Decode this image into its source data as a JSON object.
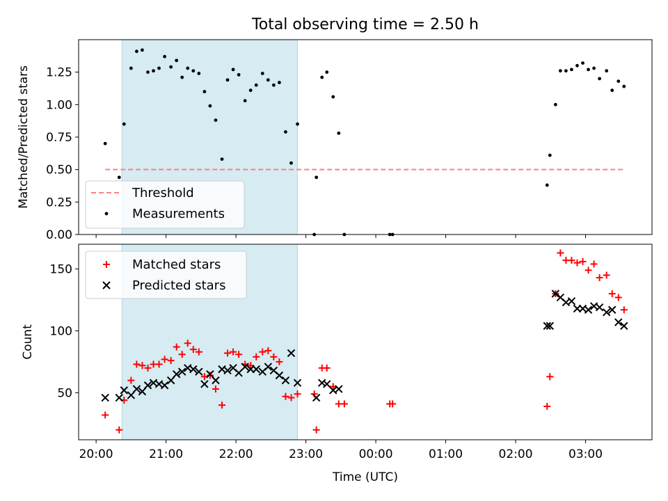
{
  "chart_data": [
    {
      "type": "scatter",
      "panel": "top",
      "title": "Total observing time = 2.50 h",
      "ylabel": "Matched/Predicted stars",
      "xlabel": "",
      "x_unit": "hours since 20:00 UTC (axis labels show clock time)",
      "xlim": [
        -0.25,
        7.95
      ],
      "ylim": [
        0,
        1.5
      ],
      "yticks": [
        0.0,
        0.25,
        0.5,
        0.75,
        1.0,
        1.25
      ],
      "ytick_labels": [
        "0.00",
        "0.25",
        "0.50",
        "0.75",
        "1.00",
        "1.25"
      ],
      "grid": false,
      "legend": {
        "placement": "lower-left",
        "entries": [
          "Threshold",
          "Measurements"
        ]
      },
      "shaded_region": {
        "x_start": 0.37,
        "x_end": 2.88,
        "color": "#add8e6"
      },
      "threshold": {
        "name": "Threshold",
        "y": 0.5,
        "x_start": 0.13,
        "x_end": 7.55,
        "color": "#ff7f7f",
        "dash": true
      },
      "series": [
        {
          "name": "Measurements",
          "color": "#000000",
          "points": [
            [
              0.13,
              0.7
            ],
            [
              0.33,
              0.44
            ],
            [
              0.4,
              0.85
            ],
            [
              0.5,
              1.28
            ],
            [
              0.58,
              1.41
            ],
            [
              0.66,
              1.42
            ],
            [
              0.74,
              1.25
            ],
            [
              0.82,
              1.26
            ],
            [
              0.9,
              1.28
            ],
            [
              0.98,
              1.37
            ],
            [
              1.07,
              1.29
            ],
            [
              1.15,
              1.34
            ],
            [
              1.23,
              1.21
            ],
            [
              1.31,
              1.28
            ],
            [
              1.39,
              1.26
            ],
            [
              1.47,
              1.24
            ],
            [
              1.55,
              1.1
            ],
            [
              1.63,
              0.99
            ],
            [
              1.71,
              0.88
            ],
            [
              1.8,
              0.58
            ],
            [
              1.88,
              1.19
            ],
            [
              1.96,
              1.27
            ],
            [
              2.04,
              1.23
            ],
            [
              2.13,
              1.03
            ],
            [
              2.21,
              1.11
            ],
            [
              2.29,
              1.15
            ],
            [
              2.38,
              1.24
            ],
            [
              2.46,
              1.19
            ],
            [
              2.54,
              1.15
            ],
            [
              2.62,
              1.17
            ],
            [
              2.71,
              0.79
            ],
            [
              2.79,
              0.55
            ],
            [
              2.88,
              0.85
            ],
            [
              3.12,
              0.0
            ],
            [
              3.15,
              0.44
            ],
            [
              3.23,
              1.21
            ],
            [
              3.3,
              1.25
            ],
            [
              3.39,
              1.06
            ],
            [
              3.47,
              0.78
            ],
            [
              3.55,
              0.0
            ],
            [
              4.2,
              0.0
            ],
            [
              4.24,
              0.0
            ],
            [
              6.45,
              0.38
            ],
            [
              6.49,
              0.61
            ],
            [
              6.57,
              1.0
            ],
            [
              6.64,
              1.26
            ],
            [
              6.72,
              1.26
            ],
            [
              6.8,
              1.27
            ],
            [
              6.88,
              1.3
            ],
            [
              6.96,
              1.32
            ],
            [
              7.04,
              1.27
            ],
            [
              7.12,
              1.28
            ],
            [
              7.2,
              1.2
            ],
            [
              7.3,
              1.26
            ],
            [
              7.38,
              1.11
            ],
            [
              7.47,
              1.18
            ],
            [
              7.55,
              1.14
            ]
          ]
        }
      ]
    },
    {
      "type": "scatter",
      "panel": "bottom",
      "title": "",
      "xlabel": "Time (UTC)",
      "ylabel": "Count",
      "x_unit": "hours since 20:00 UTC (axis labels show clock time)",
      "xlim": [
        -0.25,
        7.95
      ],
      "ylim": [
        12,
        170
      ],
      "yticks": [
        50,
        100,
        150
      ],
      "ytick_labels": [
        "50",
        "100",
        "150"
      ],
      "xticks": [
        0,
        1,
        2,
        3,
        4,
        5,
        6,
        7
      ],
      "xtick_labels": [
        "20:00",
        "21:00",
        "22:00",
        "23:00",
        "00:00",
        "01:00",
        "02:00",
        "03:00"
      ],
      "grid": false,
      "legend": {
        "placement": "top-left",
        "entries": [
          "Matched stars",
          "Predicted stars"
        ]
      },
      "shaded_region": {
        "x_start": 0.37,
        "x_end": 2.88,
        "color": "#add8e6"
      },
      "series": [
        {
          "name": "Matched stars",
          "marker": "plus",
          "color": "#ff0000",
          "points": [
            [
              0.13,
              32
            ],
            [
              0.33,
              20
            ],
            [
              0.4,
              44
            ],
            [
              0.5,
              60
            ],
            [
              0.58,
              73
            ],
            [
              0.66,
              72
            ],
            [
              0.74,
              70
            ],
            [
              0.82,
              73
            ],
            [
              0.9,
              73
            ],
            [
              0.98,
              77
            ],
            [
              1.07,
              76
            ],
            [
              1.15,
              87
            ],
            [
              1.23,
              81
            ],
            [
              1.31,
              90
            ],
            [
              1.39,
              85
            ],
            [
              1.47,
              83
            ],
            [
              1.55,
              63
            ],
            [
              1.63,
              64
            ],
            [
              1.71,
              53
            ],
            [
              1.8,
              40
            ],
            [
              1.88,
              82
            ],
            [
              1.96,
              83
            ],
            [
              2.04,
              81
            ],
            [
              2.13,
              73
            ],
            [
              2.21,
              72
            ],
            [
              2.29,
              79
            ],
            [
              2.38,
              83
            ],
            [
              2.46,
              84
            ],
            [
              2.54,
              79
            ],
            [
              2.62,
              75
            ],
            [
              2.71,
              47
            ],
            [
              2.79,
              46
            ],
            [
              2.88,
              49
            ],
            [
              3.12,
              49
            ],
            [
              3.15,
              20
            ],
            [
              3.23,
              70
            ],
            [
              3.3,
              70
            ],
            [
              3.39,
              55
            ],
            [
              3.47,
              41
            ],
            [
              3.55,
              41
            ],
            [
              4.2,
              41
            ],
            [
              4.24,
              41
            ],
            [
              6.45,
              39
            ],
            [
              6.49,
              63
            ],
            [
              6.57,
              130
            ],
            [
              6.64,
              163
            ],
            [
              6.72,
              157
            ],
            [
              6.8,
              157
            ],
            [
              6.88,
              155
            ],
            [
              6.96,
              156
            ],
            [
              7.04,
              149
            ],
            [
              7.12,
              154
            ],
            [
              7.2,
              143
            ],
            [
              7.3,
              145
            ],
            [
              7.38,
              130
            ],
            [
              7.47,
              127
            ],
            [
              7.55,
              117
            ]
          ]
        },
        {
          "name": "Predicted stars",
          "marker": "x",
          "color": "#000000",
          "points": [
            [
              0.13,
              46
            ],
            [
              0.33,
              46
            ],
            [
              0.4,
              52
            ],
            [
              0.5,
              48
            ],
            [
              0.58,
              53
            ],
            [
              0.66,
              51
            ],
            [
              0.74,
              56
            ],
            [
              0.82,
              58
            ],
            [
              0.9,
              57
            ],
            [
              0.98,
              56
            ],
            [
              1.07,
              60
            ],
            [
              1.15,
              65
            ],
            [
              1.23,
              67
            ],
            [
              1.31,
              70
            ],
            [
              1.39,
              69
            ],
            [
              1.47,
              67
            ],
            [
              1.55,
              57
            ],
            [
              1.63,
              65
            ],
            [
              1.71,
              60
            ],
            [
              1.8,
              69
            ],
            [
              1.88,
              68
            ],
            [
              1.96,
              70
            ],
            [
              2.04,
              66
            ],
            [
              2.13,
              71
            ],
            [
              2.21,
              69
            ],
            [
              2.29,
              69
            ],
            [
              2.38,
              67
            ],
            [
              2.46,
              71
            ],
            [
              2.54,
              68
            ],
            [
              2.62,
              64
            ],
            [
              2.71,
              60
            ],
            [
              2.79,
              82
            ],
            [
              2.88,
              58
            ],
            [
              3.15,
              46
            ],
            [
              3.23,
              58
            ],
            [
              3.3,
              57
            ],
            [
              3.39,
              52
            ],
            [
              3.47,
              53
            ],
            [
              6.45,
              104
            ],
            [
              6.49,
              104
            ],
            [
              6.57,
              130
            ],
            [
              6.64,
              127
            ],
            [
              6.72,
              123
            ],
            [
              6.8,
              124
            ],
            [
              6.88,
              118
            ],
            [
              6.96,
              118
            ],
            [
              7.04,
              117
            ],
            [
              7.12,
              120
            ],
            [
              7.2,
              119
            ],
            [
              7.3,
              115
            ],
            [
              7.38,
              117
            ],
            [
              7.47,
              107
            ],
            [
              7.55,
              104
            ]
          ]
        }
      ]
    }
  ]
}
